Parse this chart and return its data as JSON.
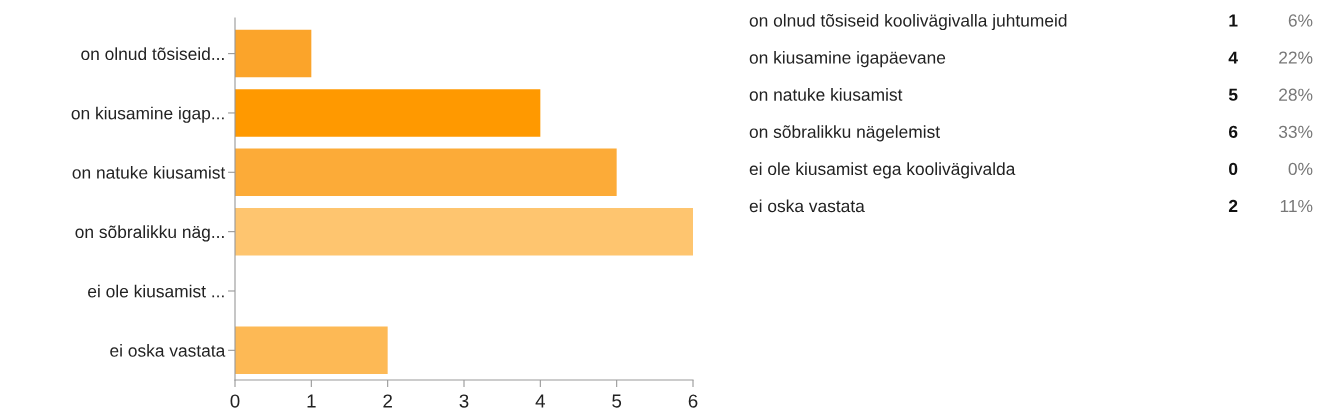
{
  "chart_data": [
    {
      "type": "bar",
      "orientation": "horizontal",
      "categories": [
        "on olnud tõsiseid...",
        "on kiusamine igap...",
        "on natuke kiusamist",
        "on sõbralikku näg...",
        "ei ole kiusamist ...",
        "ei oska vastata"
      ],
      "values": [
        1,
        4,
        5,
        6,
        0,
        2
      ],
      "colors": [
        "#fba42a",
        "#ff9900",
        "#fcab38",
        "#fec56f",
        "#fcb24a",
        "#fdb955"
      ],
      "xlim": [
        0,
        6
      ],
      "xticks": [
        0,
        1,
        2,
        3,
        4,
        5,
        6
      ],
      "grid": false,
      "legend": false
    },
    {
      "type": "other",
      "annotations": [
        "on olnud tõsiseid koolivägivalla juhtumeid",
        "1",
        "6%",
        "on kiusamine igapäevane",
        "4",
        "22%",
        "on natuke kiusamist",
        "5",
        "28%",
        "on sõbralikku nägelemist",
        "6",
        "33%",
        "ei ole kiusamist ega koolivägivalda",
        "0",
        "0%",
        "ei oska vastata",
        "2",
        "11%"
      ]
    }
  ]
}
